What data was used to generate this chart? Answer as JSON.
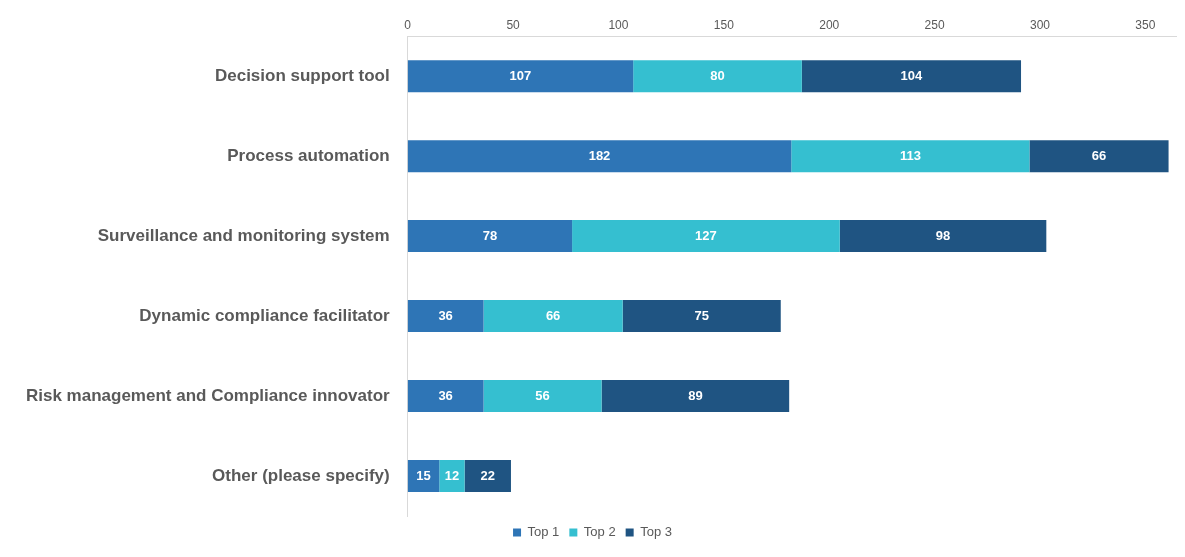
{
  "chart_data": {
    "type": "bar",
    "orientation": "horizontal",
    "stacked": true,
    "data_labels": true,
    "legend": "bottom",
    "grid": false,
    "categories": [
      "Decision support tool",
      "Process automation",
      "Surveillance and monitoring system",
      "Dynamic compliance facilitator",
      "Risk management and Compliance innovator",
      "Other (please specify)"
    ],
    "xlim": [
      0,
      365
    ],
    "xticks": [
      0,
      50,
      100,
      150,
      200,
      250,
      300,
      350
    ],
    "series": [
      {
        "name": "Top 1",
        "color": "#2e75b6",
        "values": [
          107,
          182,
          78,
          36,
          36,
          15
        ]
      },
      {
        "name": "Top 2",
        "color": "#35bfd0",
        "values": [
          80,
          113,
          127,
          66,
          56,
          12
        ]
      },
      {
        "name": "Top 3",
        "color": "#1f5482",
        "values": [
          104,
          66,
          98,
          75,
          89,
          22
        ]
      }
    ]
  }
}
